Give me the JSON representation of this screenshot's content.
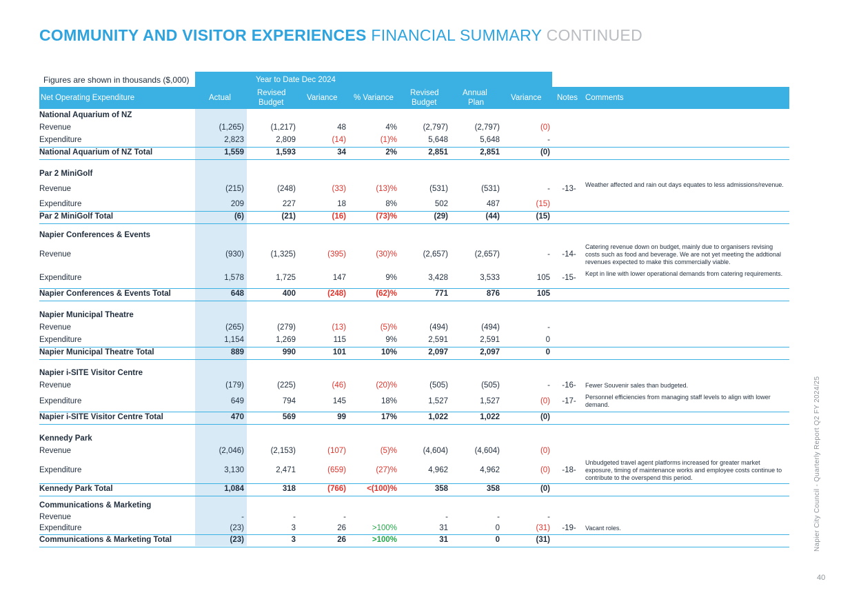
{
  "title": {
    "part1": "COMMUNITY AND VISITOR EXPERIENCES",
    "part2": "FINANCIAL SUMMARY",
    "part3": "CONTINUED"
  },
  "figures_note": "Figures are shown in thousands ($,000)",
  "ytd_label": "Year to Date  Dec 2024",
  "headers": {
    "label": "Net Operating Expenditure",
    "actual": "Actual",
    "revised_budget_1": "Revised",
    "revised_budget_2": "Budget",
    "variance": "Variance",
    "pct_variance": "% Variance",
    "rev_budget_annual_1": "Revised",
    "rev_budget_annual_2": "Budget",
    "annual_plan_1": "Annual",
    "annual_plan_2": "Plan",
    "variance_annual": "Variance",
    "notes": "Notes",
    "comments": "Comments"
  },
  "sections": [
    {
      "name": "National Aquarium of NZ",
      "rows": [
        {
          "label": "Revenue",
          "actual": "(1,265)",
          "rb": "(1,217)",
          "var": "48",
          "pct": "4%",
          "rba": "(2,797)",
          "ap": "(2,797)",
          "vara": "(0)",
          "var_c": "",
          "pct_c": "",
          "vara_c": "red",
          "note": "",
          "comment": ""
        },
        {
          "label": "Expenditure",
          "actual": "2,823",
          "rb": "2,809",
          "var": "(14)",
          "pct": "(1)%",
          "rba": "5,648",
          "ap": "5,648",
          "vara": "-",
          "var_c": "red",
          "pct_c": "red",
          "vara_c": "",
          "note": "",
          "comment": ""
        }
      ],
      "total": {
        "label": "National Aquarium of NZ Total",
        "actual": "1,559",
        "rb": "1,593",
        "var": "34",
        "pct": "2%",
        "rba": "2,851",
        "ap": "2,851",
        "vara": "(0)",
        "var_c": "",
        "pct_c": "",
        "vara_c": ""
      }
    },
    {
      "name": "Par 2 MiniGolf",
      "rows": [
        {
          "label": "Revenue",
          "actual": "(215)",
          "rb": "(248)",
          "var": "(33)",
          "pct": "(13)%",
          "rba": "(531)",
          "ap": "(531)",
          "vara": "-",
          "var_c": "red",
          "pct_c": "red",
          "vara_c": "",
          "note": "-13-",
          "comment": "Weather affected and rain out days equates to less admissions/revenue."
        },
        {
          "label": "Expenditure",
          "actual": "209",
          "rb": "227",
          "var": "18",
          "pct": "8%",
          "rba": "502",
          "ap": "487",
          "vara": "(15)",
          "var_c": "",
          "pct_c": "",
          "vara_c": "red",
          "note": "",
          "comment": ""
        }
      ],
      "total": {
        "label": "Par 2 MiniGolf Total",
        "actual": "(6)",
        "rb": "(21)",
        "var": "(16)",
        "pct": "(73)%",
        "rba": "(29)",
        "ap": "(44)",
        "vara": "(15)",
        "var_c": "red",
        "pct_c": "red",
        "vara_c": ""
      }
    },
    {
      "name": "Napier Conferences & Events",
      "rows": [
        {
          "label": "Revenue",
          "actual": "(930)",
          "rb": "(1,325)",
          "var": "(395)",
          "pct": "(30)%",
          "rba": "(2,657)",
          "ap": "(2,657)",
          "vara": "-",
          "var_c": "red",
          "pct_c": "red",
          "vara_c": "",
          "note": "-14-",
          "comment": "Catering revenue down on budget, mainly due to organisers revising costs such as food and beverage.  We are not yet meeting the addtional revenues expected to make this commercially viable."
        },
        {
          "label": "Expenditure",
          "actual": "1,578",
          "rb": "1,725",
          "var": "147",
          "pct": "9%",
          "rba": "3,428",
          "ap": "3,533",
          "vara": "105",
          "var_c": "",
          "pct_c": "",
          "vara_c": "",
          "note": "-15-",
          "comment": "Kept in line with lower operational demands from catering requirements."
        }
      ],
      "total": {
        "label": "Napier Conferences & Events Total",
        "actual": "648",
        "rb": "400",
        "var": "(248)",
        "pct": "(62)%",
        "rba": "771",
        "ap": "876",
        "vara": "105",
        "var_c": "red",
        "pct_c": "red",
        "vara_c": ""
      }
    },
    {
      "name": "Napier Municipal Theatre",
      "rows": [
        {
          "label": "Revenue",
          "actual": "(265)",
          "rb": "(279)",
          "var": "(13)",
          "pct": "(5)%",
          "rba": "(494)",
          "ap": "(494)",
          "vara": "-",
          "var_c": "red",
          "pct_c": "red",
          "vara_c": "",
          "note": "",
          "comment": ""
        },
        {
          "label": "Expenditure",
          "actual": "1,154",
          "rb": "1,269",
          "var": "115",
          "pct": "9%",
          "rba": "2,591",
          "ap": "2,591",
          "vara": "0",
          "var_c": "",
          "pct_c": "",
          "vara_c": "",
          "note": "",
          "comment": ""
        }
      ],
      "total": {
        "label": "Napier Municipal Theatre Total",
        "actual": "889",
        "rb": "990",
        "var": "101",
        "pct": "10%",
        "rba": "2,097",
        "ap": "2,097",
        "vara": "0",
        "var_c": "",
        "pct_c": "",
        "vara_c": ""
      }
    },
    {
      "name": "Napier i-SITE Visitor Centre",
      "rows": [
        {
          "label": "Revenue",
          "actual": "(179)",
          "rb": "(225)",
          "var": "(46)",
          "pct": "(20)%",
          "rba": "(505)",
          "ap": "(505)",
          "vara": "-",
          "var_c": "red",
          "pct_c": "red",
          "vara_c": "",
          "note": "-16-",
          "comment": "Fewer Souvenir sales  than budgeted."
        },
        {
          "label": "Expenditure",
          "actual": "649",
          "rb": "794",
          "var": "145",
          "pct": "18%",
          "rba": "1,527",
          "ap": "1,527",
          "vara": "(0)",
          "var_c": "",
          "pct_c": "",
          "vara_c": "red",
          "note": "-17-",
          "comment": "Personnel efficiencies from managing staff levels to align with lower demand."
        }
      ],
      "total": {
        "label": "Napier i-SITE Visitor Centre Total",
        "actual": "470",
        "rb": "569",
        "var": "99",
        "pct": "17%",
        "rba": "1,022",
        "ap": "1,022",
        "vara": "(0)",
        "var_c": "",
        "pct_c": "",
        "vara_c": ""
      }
    },
    {
      "name": "Kennedy Park",
      "rows": [
        {
          "label": "Revenue",
          "actual": "(2,046)",
          "rb": "(2,153)",
          "var": "(107)",
          "pct": "(5)%",
          "rba": "(4,604)",
          "ap": "(4,604)",
          "vara": "(0)",
          "var_c": "red",
          "pct_c": "red",
          "vara_c": "red",
          "note": "",
          "comment": ""
        },
        {
          "label": "Expenditure",
          "actual": "3,130",
          "rb": "2,471",
          "var": "(659)",
          "pct": "(27)%",
          "rba": "4,962",
          "ap": "4,962",
          "vara": "(0)",
          "var_c": "red",
          "pct_c": "red",
          "vara_c": "red",
          "note": "-18-",
          "comment": "Unbudgeted travel agent platforms increased for greater market exposure, timing of maintenance works and employee costs continue to contribute to the overspend this period."
        }
      ],
      "total": {
        "label": "Kennedy Park Total",
        "actual": "1,084",
        "rb": "318",
        "var": "(766)",
        "pct": "<(100)%",
        "rba": "358",
        "ap": "358",
        "vara": "(0)",
        "var_c": "red",
        "pct_c": "red",
        "vara_c": ""
      }
    },
    {
      "name": "Communications & Marketing",
      "rows": [
        {
          "label": "Revenue",
          "actual": "-",
          "rb": "-",
          "var": "-",
          "pct": "",
          "rba": "-",
          "ap": "-",
          "vara": "-",
          "var_c": "",
          "pct_c": "",
          "vara_c": "",
          "note": "",
          "comment": ""
        },
        {
          "label": "Expenditure",
          "actual": "(23)",
          "rb": "3",
          "var": "26",
          "pct": ">100%",
          "rba": "31",
          "ap": "0",
          "vara": "(31)",
          "var_c": "",
          "pct_c": "green",
          "vara_c": "red",
          "note": "-19-",
          "comment": "Vacant roles."
        }
      ],
      "total": {
        "label": "Communications & Marketing Total",
        "actual": "(23)",
        "rb": "3",
        "var": "26",
        "pct": ">100%",
        "rba": "31",
        "ap": "0",
        "vara": "(31)",
        "var_c": "",
        "pct_c": "green",
        "vara_c": ""
      }
    }
  ],
  "side_text": "Napier City Council - Quarterly Report Q2 FY 2024/25",
  "page_number": "40"
}
